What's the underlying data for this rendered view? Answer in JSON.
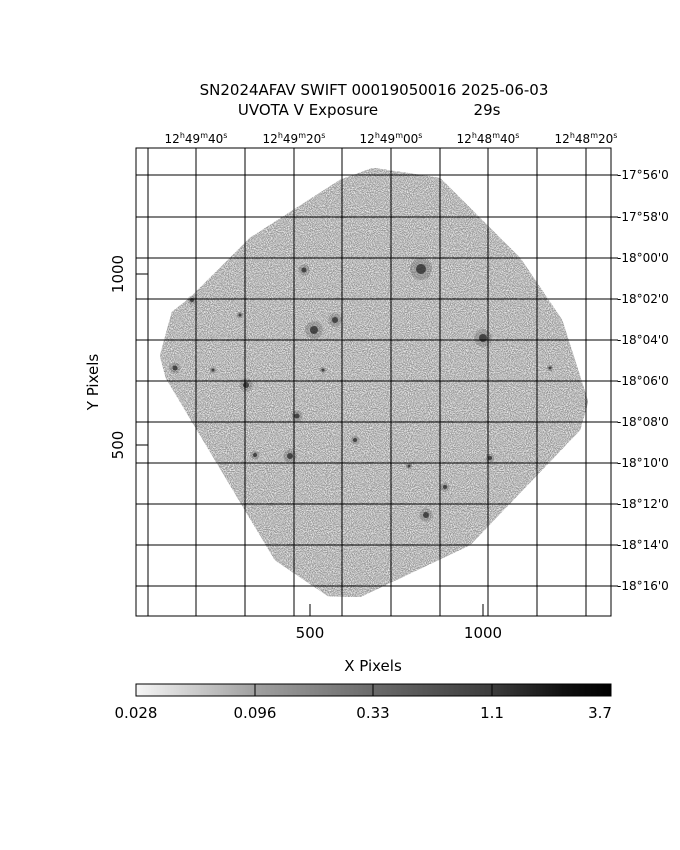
{
  "title": {
    "line1": "SN2024AFAV SWIFT 00019050016 2025-06-03",
    "line2_label": "UVOTA V Exposure",
    "line2_value": "29s"
  },
  "axes": {
    "x_label": "X Pixels",
    "y_label": "Y Pixels",
    "x_ticks": [
      "500",
      "1000"
    ],
    "y_ticks": [
      "1000",
      "500"
    ]
  },
  "ra_labels": [
    {
      "h": "12",
      "m": "49",
      "s": "40"
    },
    {
      "h": "12",
      "m": "49",
      "s": "20"
    },
    {
      "h": "12",
      "m": "49",
      "s": "00"
    },
    {
      "h": "12",
      "m": "48",
      "s": "40"
    },
    {
      "h": "12",
      "m": "48",
      "s": "20"
    }
  ],
  "dec_labels": [
    "-17°56'0",
    "-17°58'0",
    "-18°00'0",
    "-18°02'0",
    "-18°04'0",
    "-18°06'0",
    "-18°08'0",
    "-18°10'0",
    "-18°12'0",
    "-18°14'0",
    "-18°16'0"
  ],
  "colorbar": {
    "labels": [
      "0.028",
      "0.096",
      "0.33",
      "1.1",
      "3.7"
    ]
  }
}
